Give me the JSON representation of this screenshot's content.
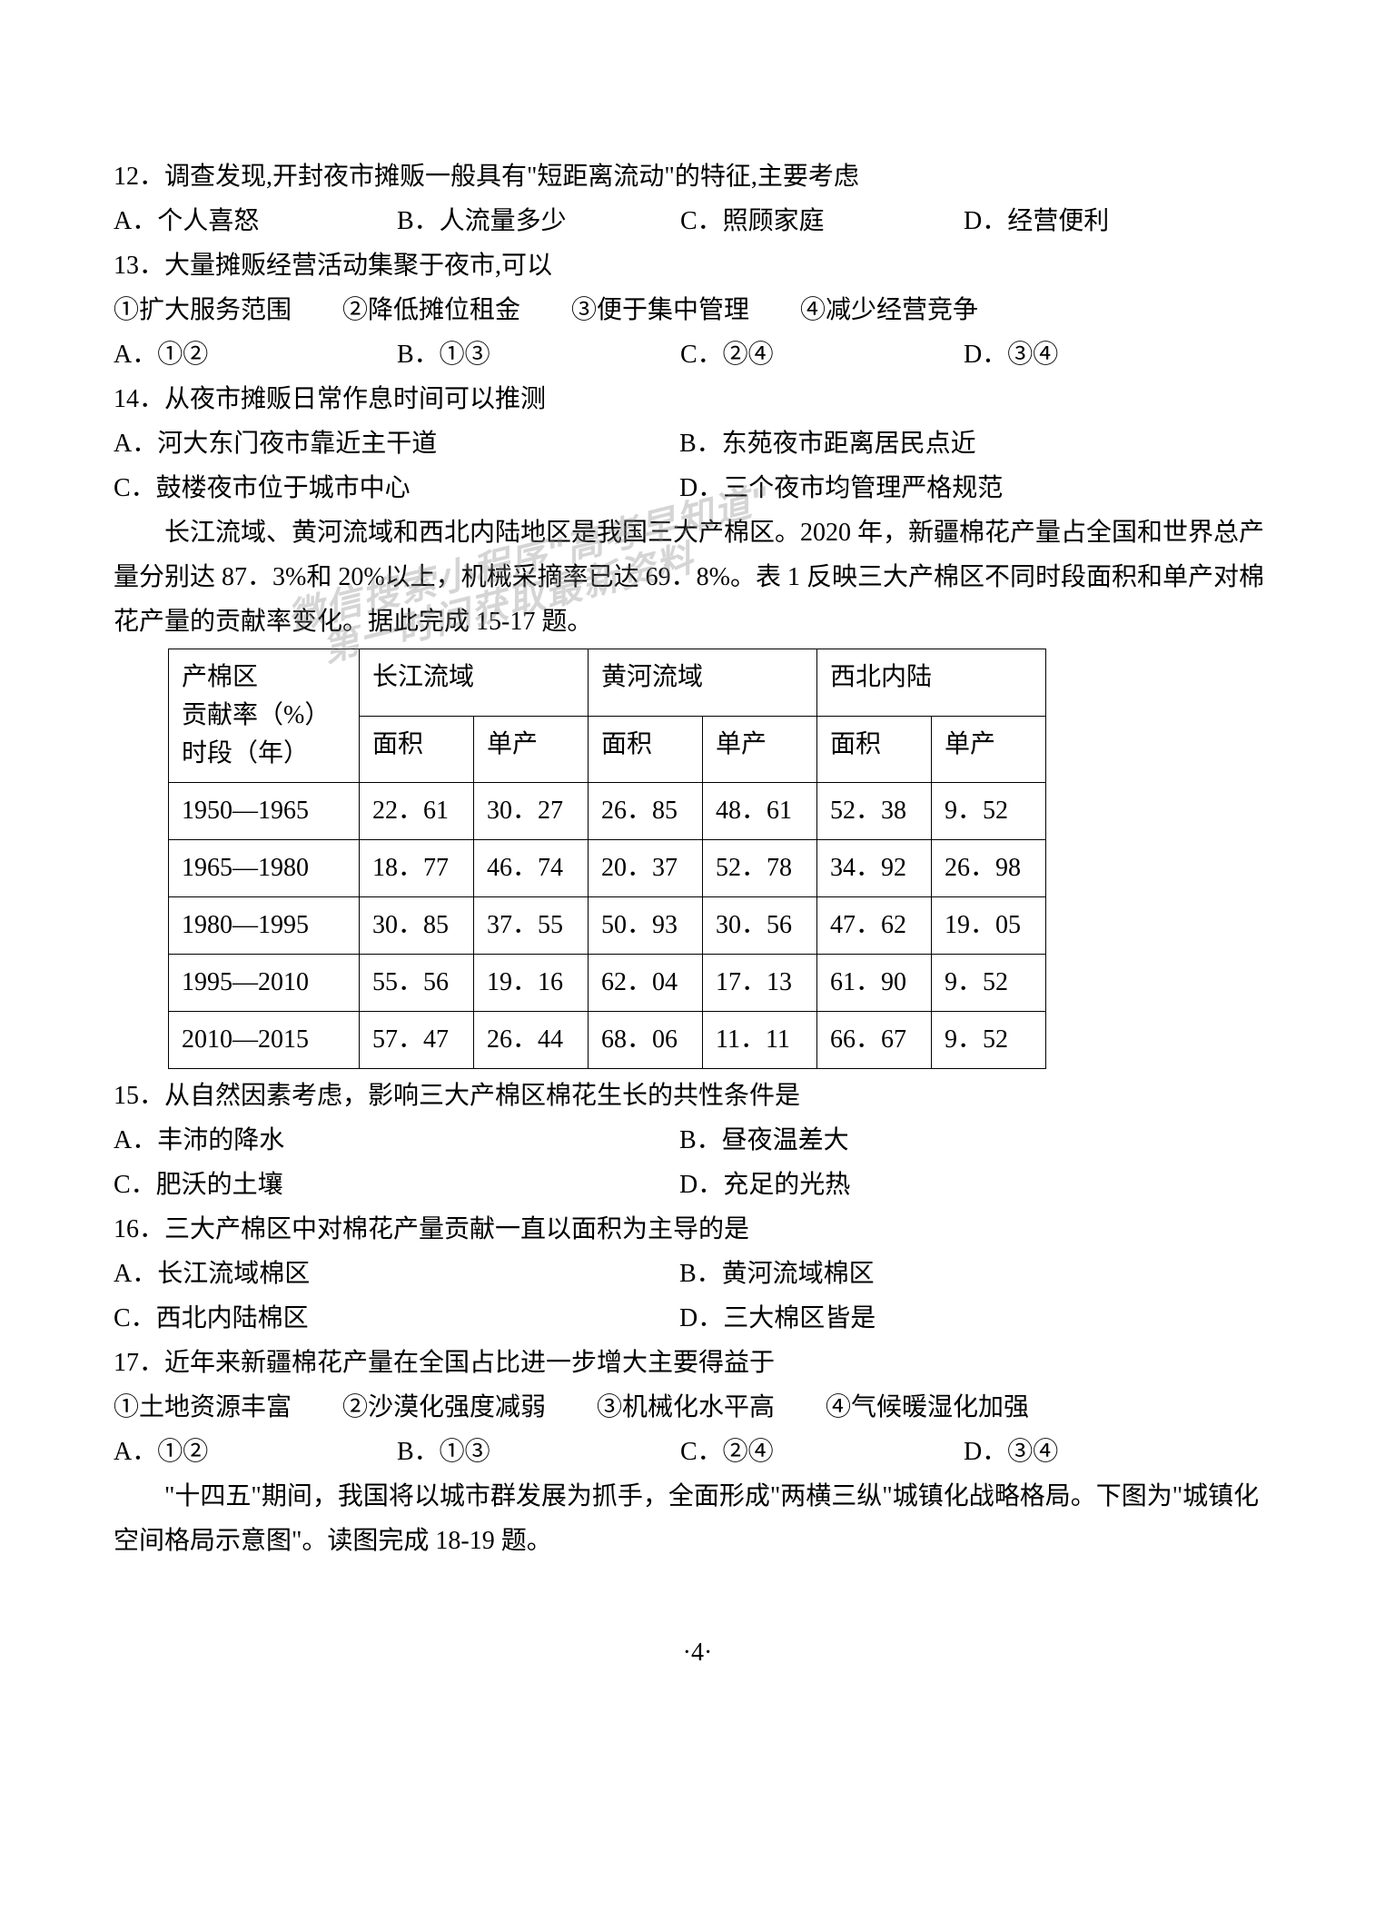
{
  "q12": {
    "text": "12．调查发现,开封夜市摊贩一般具有\"短距离流动\"的特征,主要考虑",
    "optA": "A．个人喜怒",
    "optB": "B．人流量多少",
    "optC": "C．照顾家庭",
    "optD": "D．经营便利"
  },
  "q13": {
    "text": "13．大量摊贩经营活动集聚于夜市,可以",
    "subtext": "①扩大服务范围　　②降低摊位租金　　③便于集中管理　　④减少经营竞争",
    "optA": "A．①②",
    "optB": "B．①③",
    "optC": "C．②④",
    "optD": "D．③④"
  },
  "q14": {
    "text": "14．从夜市摊贩日常作息时间可以推测",
    "optA": "A．河大东门夜市靠近主干道",
    "optB": "B．东苑夜市距离居民点近",
    "optC": "C．鼓楼夜市位于城市中心",
    "optD": "D．三个夜市均管理严格规范"
  },
  "passage1": "长江流域、黄河流域和西北内陆地区是我国三大产棉区。2020 年，新疆棉花产量占全国和世界总产量分别达 87．3%和 20%以上，机械采摘率已达 69．8%。表 1 反映三大产棉区不同时段面积和单产对棉花产量的贡献率变化。据此完成 15-17 题。",
  "table": {
    "header_col1_line1": "产棉区",
    "header_col1_line2": "贡献率（%）",
    "header_col1_line3": "时段（年）",
    "header1": "长江流域",
    "header2": "黄河流域",
    "header3": "西北内陆",
    "sub1": "面积",
    "sub2": "单产",
    "sub3": "面积",
    "sub4": "单产",
    "sub5": "面积",
    "sub6": "单产",
    "rows": [
      {
        "period": "1950—1965",
        "d1": "22．61",
        "d2": "30．27",
        "d3": "26．85",
        "d4": "48．61",
        "d5": "52．38",
        "d6": "9．52"
      },
      {
        "period": "1965—1980",
        "d1": "18．77",
        "d2": "46．74",
        "d3": "20．37",
        "d4": "52．78",
        "d5": "34．92",
        "d6": "26．98"
      },
      {
        "period": "1980—1995",
        "d1": "30．85",
        "d2": "37．55",
        "d3": "50．93",
        "d4": "30．56",
        "d5": "47．62",
        "d6": "19．05"
      },
      {
        "period": "1995—2010",
        "d1": "55．56",
        "d2": "19．16",
        "d3": "62．04",
        "d4": "17．13",
        "d5": "61．90",
        "d6": "9．52"
      },
      {
        "period": "2010—2015",
        "d1": "57．47",
        "d2": "26．44",
        "d3": "68．06",
        "d4": "11．11",
        "d5": "66．67",
        "d6": "9．52"
      }
    ]
  },
  "q15": {
    "text": "15．从自然因素考虑，影响三大产棉区棉花生长的共性条件是",
    "optA": "A．丰沛的降水",
    "optB": "B．昼夜温差大",
    "optC": "C．肥沃的土壤",
    "optD": "D．充足的光热"
  },
  "q16": {
    "text": "16．三大产棉区中对棉花产量贡献一直以面积为主导的是",
    "optA": "A．长江流域棉区",
    "optB": "B．黄河流域棉区",
    "optC": "C．西北内陆棉区",
    "optD": "D．三大棉区皆是"
  },
  "q17": {
    "text": "17．近年来新疆棉花产量在全国占比进一步增大主要得益于",
    "subtext": "①土地资源丰富　　②沙漠化强度减弱　　③机械化水平高　　④气候暖湿化加强",
    "optA": "A．①②",
    "optB": "B．①③",
    "optC": "C．②④",
    "optD": "D．③④"
  },
  "passage2": "\"十四五\"期间，我国将以城市群发展为抓手，全面形成\"两横三纵\"城镇化战略格局。下图为\"城镇化空间格局示意图\"。读图完成 18-19 题。",
  "watermark_line1": "微信搜索小程序\"高考早知道\"",
  "watermark_line2": "第一时间获取最新资料",
  "page_num": "·4·"
}
